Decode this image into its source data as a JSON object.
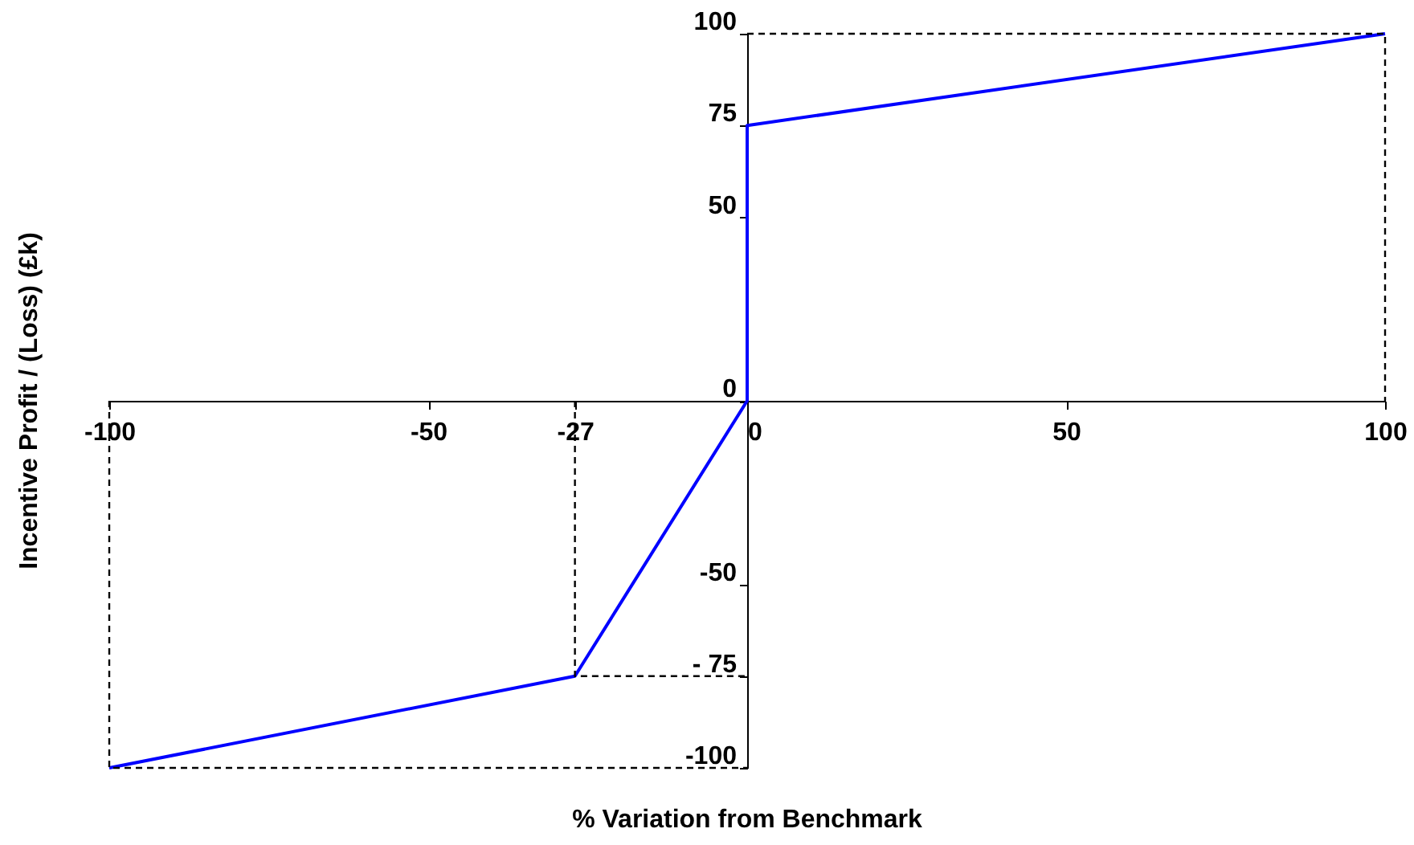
{
  "chart_data": {
    "type": "line",
    "xlabel": "% Variation from Benchmark",
    "ylabel": "Incentive Profit / (Loss) (£k)",
    "xlim": [
      -100,
      100
    ],
    "ylim": [
      -100,
      100
    ],
    "xticks": [
      -100,
      -50,
      -27,
      0,
      50,
      100
    ],
    "yticks": [
      -100,
      {
        "value": -75,
        "label": "- 75"
      },
      -50,
      0,
      50,
      75,
      100
    ],
    "grid": false,
    "marker": "none",
    "series": [
      {
        "color": "#0000ff",
        "line_style": "solid",
        "x": [
          -100,
          -27,
          0,
          0,
          100
        ],
        "values": [
          -100,
          -75,
          0,
          75,
          100
        ]
      },
      {
        "color": "#000000",
        "line_style": "dashed",
        "x": [
          -100,
          -100,
          0
        ],
        "values": [
          0,
          -100,
          -100
        ]
      },
      {
        "color": "#000000",
        "line_style": "dashed",
        "x": [
          -27,
          -27,
          0
        ],
        "values": [
          0,
          -75,
          -75
        ]
      },
      {
        "color": "#000000",
        "line_style": "dashed",
        "x": [
          0,
          100,
          100
        ],
        "values": [
          100,
          100,
          0
        ]
      }
    ]
  }
}
